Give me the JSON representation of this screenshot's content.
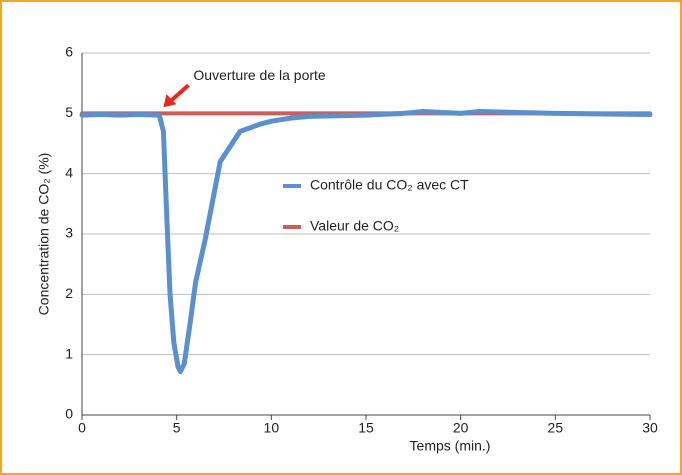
{
  "chart_data": {
    "type": "line",
    "xlabel": "Temps (min.)",
    "ylabel": "Concentration de CO₂ (%)",
    "xlim": [
      0,
      30
    ],
    "xticks": [
      0,
      5,
      10,
      15,
      20,
      25,
      30
    ],
    "ylim": [
      0,
      6
    ],
    "yticks": [
      0,
      1,
      2,
      3,
      4,
      5,
      6
    ],
    "grid": true,
    "annotation": {
      "text": "Ouverture de la porte",
      "x": 4.3,
      "y": 5.1
    },
    "series": [
      {
        "name": "Contrôle du CO₂ avec CT",
        "color": "#5b8fcd",
        "x": [
          0,
          1,
          2,
          3,
          4,
          4.1,
          4.3,
          4.45,
          4.65,
          4.85,
          5.07,
          5.2,
          5.4,
          5.7,
          6.0,
          6.5,
          7.3,
          8.35,
          9.4,
          10,
          11,
          12,
          15,
          17,
          18,
          20,
          21,
          25,
          30
        ],
        "values": [
          4.97,
          4.98,
          4.97,
          4.98,
          4.97,
          4.95,
          4.7,
          3.5,
          2,
          1.2,
          0.8,
          0.72,
          0.85,
          1.5,
          2.2,
          2.9,
          4.2,
          4.7,
          4.82,
          4.87,
          4.92,
          4.95,
          4.97,
          5.0,
          5.03,
          5.0,
          5.03,
          5.0,
          4.98
        ]
      },
      {
        "name": "Valeur de CO₂",
        "color": "#d05b57",
        "x": [
          0,
          30
        ],
        "values": [
          5,
          5
        ]
      }
    ]
  }
}
